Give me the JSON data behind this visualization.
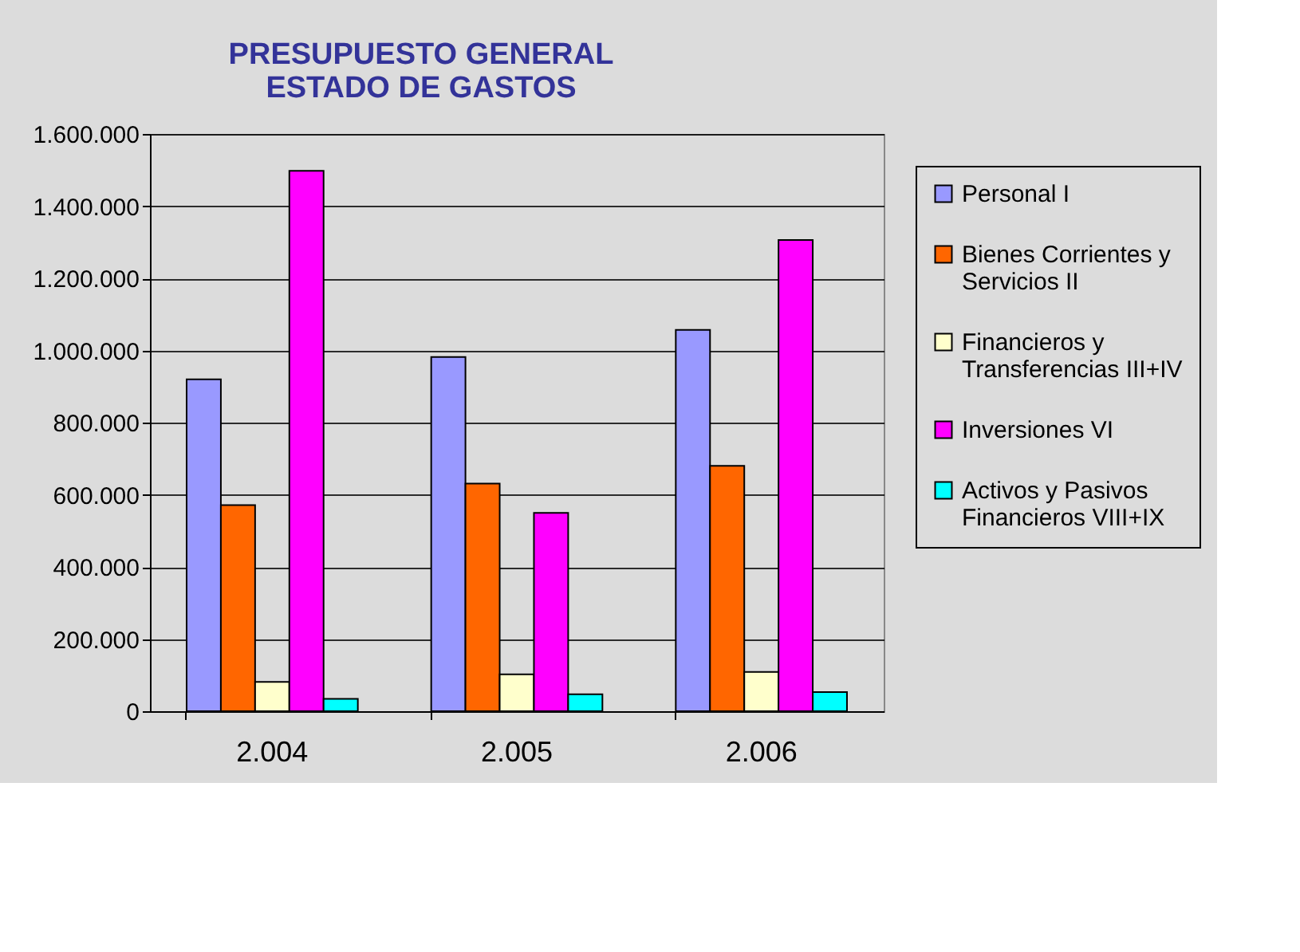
{
  "chart_data": {
    "type": "bar",
    "title": "PRESUPUESTO GENERAL\nESTADO DE GASTOS",
    "categories": [
      "2.004",
      "2.005",
      "2.006"
    ],
    "series": [
      {
        "name": "Personal I",
        "color": "#9999ff",
        "values": [
          920000,
          982000,
          1057000
        ]
      },
      {
        "name": "Bienes Corrientes y Servicios II",
        "color": "#ff6600",
        "values": [
          571000,
          631000,
          680000
        ]
      },
      {
        "name": "Financieros y Transferencias III+IV",
        "color": "#ffffcc",
        "values": [
          81000,
          102000,
          109000
        ]
      },
      {
        "name": "Inversiones VI",
        "color": "#ff00ff",
        "values": [
          1498000,
          550000,
          1306000
        ]
      },
      {
        "name": "Activos y Pasivos Financieros VIII+IX",
        "color": "#00ffff",
        "values": [
          34000,
          47000,
          53000
        ]
      }
    ],
    "ylim": [
      0,
      1600000
    ],
    "yticks": [
      {
        "value": 0,
        "label": "0"
      },
      {
        "value": 200000,
        "label": "200.000"
      },
      {
        "value": 400000,
        "label": "400.000"
      },
      {
        "value": 600000,
        "label": "600.000"
      },
      {
        "value": 800000,
        "label": "800.000"
      },
      {
        "value": 1000000,
        "label": "1.000.000"
      },
      {
        "value": 1200000,
        "label": "1.200.000"
      },
      {
        "value": 1400000,
        "label": "1.400.000"
      },
      {
        "value": 1600000,
        "label": "1.600.000"
      }
    ],
    "grid": "y",
    "legend": "right"
  }
}
